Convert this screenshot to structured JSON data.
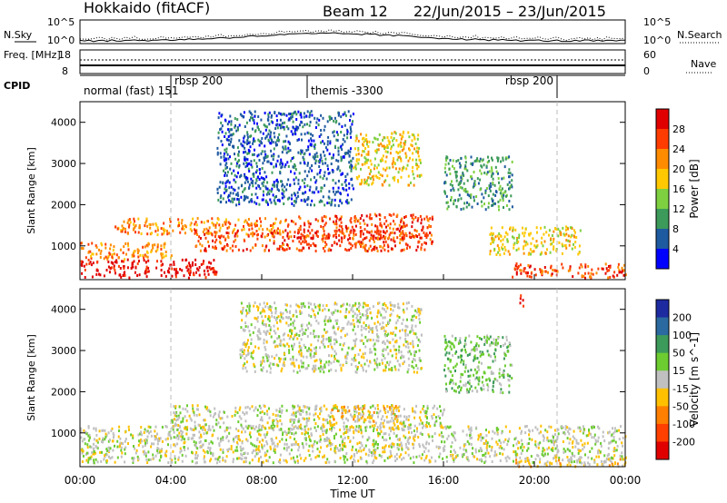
{
  "header": {
    "title": "Hokkaido (fitACF)",
    "beam": "Beam 12",
    "date_range": "22/Jun/2015 – 23/Jun/2015"
  },
  "noise_panel": {
    "left_label": "N.Sky",
    "right_label": "N.Search",
    "left_ticks": [
      "10^5",
      "10^0"
    ],
    "right_ticks": [
      "10^5",
      "10^0"
    ]
  },
  "freq_panel": {
    "left_label": "Freq. [MHz]",
    "right_label": "Nave",
    "left_ticks": [
      "18",
      "8"
    ],
    "right_ticks": [
      "60",
      "0"
    ]
  },
  "cpid_panel": {
    "label": "CPID",
    "modes": [
      {
        "time_h": 0.0,
        "text": "normal (fast) 151"
      },
      {
        "time_h": 4.0,
        "text": "rbsp 200"
      },
      {
        "time_h": 10.0,
        "text": "themis -3300"
      },
      {
        "time_h": 21.0,
        "text": "rbsp 200"
      }
    ]
  },
  "power_colorbar": {
    "title": "Power [dB]",
    "labels": [
      "28",
      "24",
      "20",
      "16",
      "12",
      "8",
      "4"
    ],
    "colors": [
      "#e00000",
      "#ff3c00",
      "#ff8c00",
      "#ffc800",
      "#7fd040",
      "#3c9a5a",
      "#1e5aa0",
      "#0000ff"
    ]
  },
  "velocity_colorbar": {
    "title": "Velocity [m s^-1]",
    "labels": [
      "200",
      "100",
      "50",
      "15",
      "-15",
      "-50",
      "-100",
      "-200"
    ],
    "colors": [
      "#1e2aa0",
      "#2a6aa0",
      "#3c9a5a",
      "#6ccc30",
      "#c0c0c0",
      "#ffc000",
      "#ff8000",
      "#ff4000",
      "#e00000"
    ]
  },
  "chart_data": [
    {
      "type": "heatmap",
      "panel": "power",
      "ylabel": "Slant Range [km]",
      "xlim": [
        0,
        24
      ],
      "ylim": [
        180,
        4500
      ],
      "y_ticks": [
        1000,
        2000,
        3000,
        4000
      ],
      "x_tick_labels": [
        "00:00",
        "04:00",
        "08:00",
        "12:00",
        "16:00",
        "20:00",
        "00:00"
      ],
      "bands": [
        {
          "t0": 0.0,
          "t1": 6.0,
          "r0": 250,
          "r1": 700,
          "level": 0
        },
        {
          "t0": 0.0,
          "t1": 4.0,
          "r0": 700,
          "r1": 1100,
          "level": 2
        },
        {
          "t0": 1.5,
          "t1": 9.0,
          "r0": 1300,
          "r1": 1700,
          "level": 2
        },
        {
          "t0": 5.0,
          "t1": 15.5,
          "r0": 900,
          "r1": 1400,
          "level": 1
        },
        {
          "t0": 9.0,
          "t1": 15.5,
          "r0": 1200,
          "r1": 1800,
          "level": 1
        },
        {
          "t0": 12.0,
          "t1": 15.0,
          "r0": 2500,
          "r1": 3800,
          "level": 3
        },
        {
          "t0": 16.0,
          "t1": 19.0,
          "r0": 1900,
          "r1": 3200,
          "level": 5
        },
        {
          "t0": 18.0,
          "t1": 22.0,
          "r0": 800,
          "r1": 1500,
          "level": 3
        },
        {
          "t0": 19.0,
          "t1": 24.0,
          "r0": 250,
          "r1": 600,
          "level": 1
        },
        {
          "t0": 6.0,
          "t1": 12.0,
          "r0": 2000,
          "r1": 4300,
          "level": 6
        }
      ]
    },
    {
      "type": "heatmap",
      "panel": "velocity",
      "ylabel": "Slant Range [km]",
      "xlabel": "Time UT",
      "xlim": [
        0,
        24
      ],
      "ylim": [
        180,
        4500
      ],
      "y_ticks": [
        1000,
        2000,
        3000,
        4000
      ],
      "x_tick_labels": [
        "00:00",
        "04:00",
        "08:00",
        "12:00",
        "16:00",
        "20:00",
        "00:00"
      ],
      "bands": [
        {
          "t0": 0.0,
          "t1": 24.0,
          "r0": 300,
          "r1": 1200,
          "level": 4
        },
        {
          "t0": 4.0,
          "t1": 16.0,
          "r0": 1100,
          "r1": 1700,
          "level": 4
        },
        {
          "t0": 7.0,
          "t1": 15.0,
          "r0": 2500,
          "r1": 4200,
          "level": 4
        },
        {
          "t0": 11.0,
          "t1": 14.0,
          "r0": 1300,
          "r1": 1700,
          "level": 5
        },
        {
          "t0": 16.0,
          "t1": 19.0,
          "r0": 2000,
          "r1": 3400,
          "level": 3
        },
        {
          "t0": 19.0,
          "t1": 24.0,
          "r0": 200,
          "r1": 400,
          "level": 5
        },
        {
          "t0": 19.3,
          "t1": 19.5,
          "r0": 4000,
          "r1": 4400,
          "level": 8
        }
      ]
    }
  ]
}
